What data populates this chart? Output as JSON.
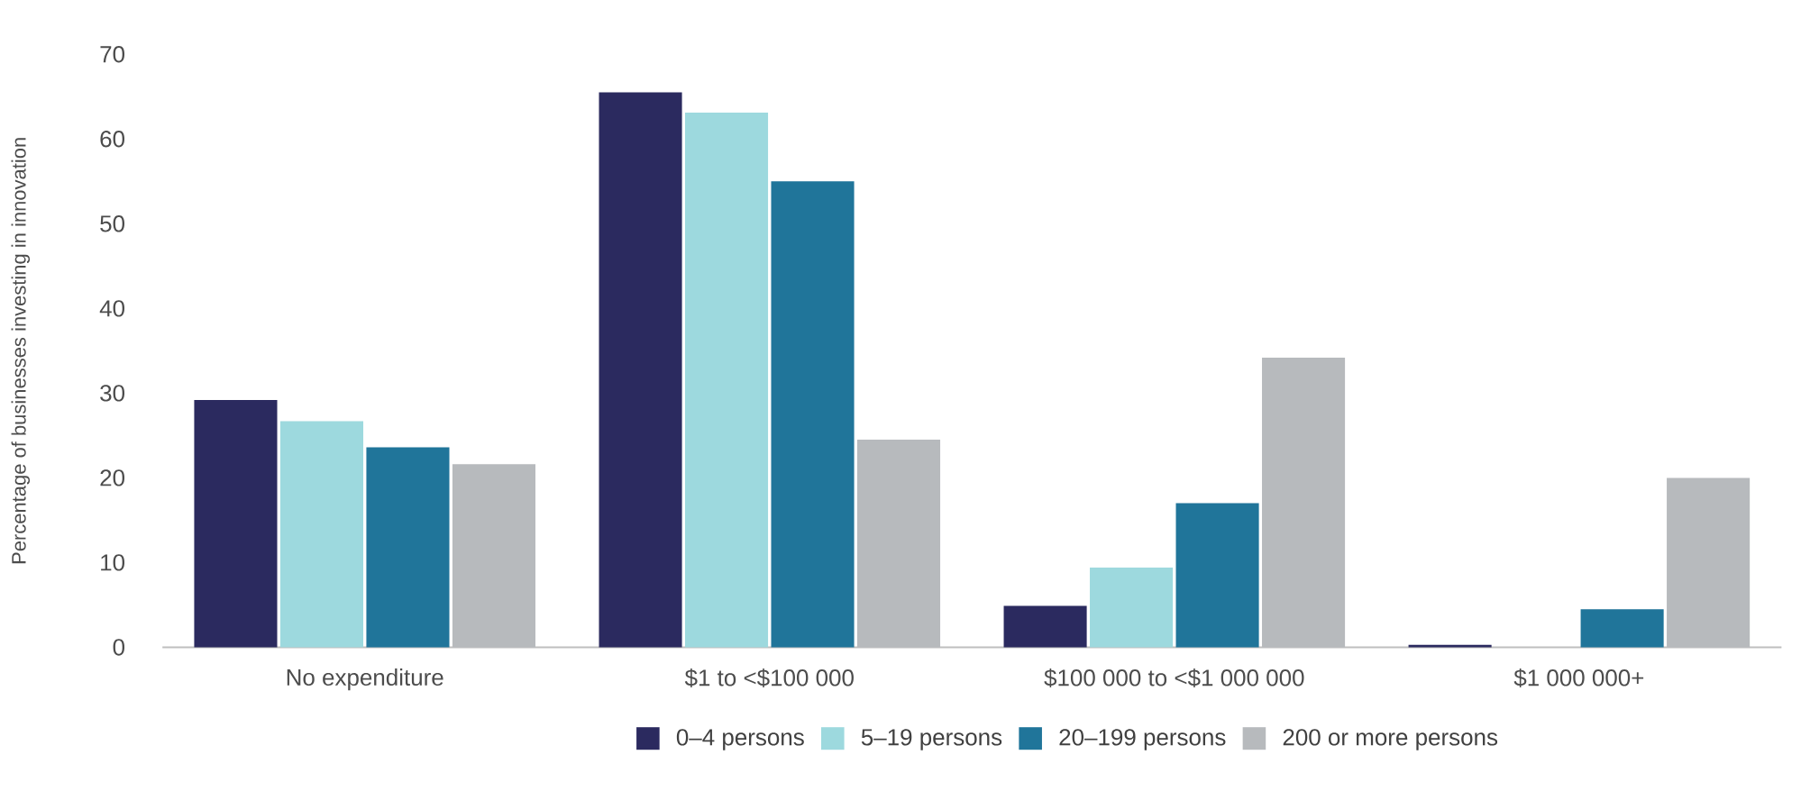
{
  "chart_data": {
    "type": "bar",
    "ylabel": "Percentage of businesses investing in innovation",
    "categories": [
      "No expenditure",
      "$1 to <$100 000",
      "$100 000 to <$1 000 000",
      "$1 000 000+"
    ],
    "series": [
      {
        "name": "0–4 persons",
        "color": "#2b2a5f",
        "values": [
          29.2,
          65.5,
          4.9,
          0.3
        ]
      },
      {
        "name": "5–19 persons",
        "color": "#9dd9de",
        "values": [
          26.7,
          63.1,
          9.4,
          0
        ]
      },
      {
        "name": "20–199 persons",
        "color": "#20759a",
        "values": [
          23.6,
          55,
          17,
          4.5
        ]
      },
      {
        "name": "200 or more persons",
        "color": "#b7babd",
        "values": [
          21.6,
          24.5,
          34.2,
          20
        ]
      }
    ],
    "ylim": [
      0,
      70
    ],
    "yticks": [
      0,
      10,
      20,
      30,
      40,
      50,
      60,
      70
    ],
    "legend": "bottom"
  }
}
